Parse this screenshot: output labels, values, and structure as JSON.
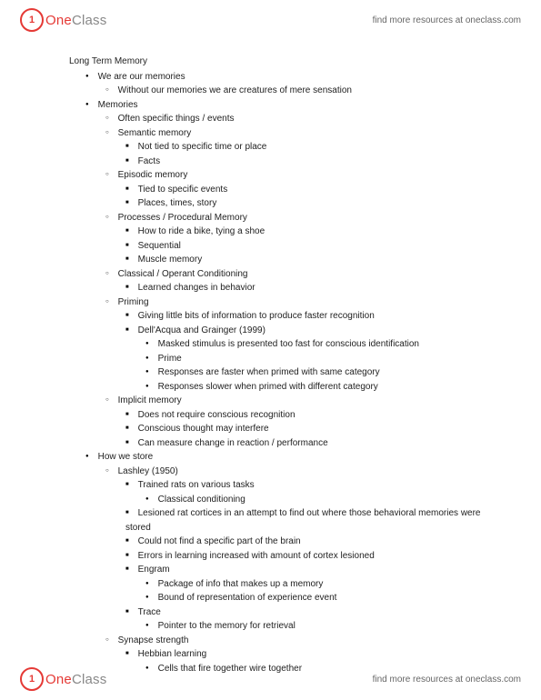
{
  "brand": {
    "one": "One",
    "class": "Class",
    "circle": "1"
  },
  "header_link": "find more resources at oneclass.com",
  "footer_link": "find more resources at oneclass.com",
  "title": "Long Term Memory",
  "b1": "We are our memories",
  "b1_1": "Without our memories we are creatures of mere sensation",
  "b2": "Memories",
  "b2_1": "Often specific things / events",
  "b2_2": "Semantic memory",
  "b2_2_1": "Not tied to specific time or place",
  "b2_2_2": "Facts",
  "b2_3": "Episodic memory",
  "b2_3_1": "Tied to specific events",
  "b2_3_2": "Places, times, story",
  "b2_4": "Processes / Procedural Memory",
  "b2_4_1": "How to ride a bike, tying a shoe",
  "b2_4_2": "Sequential",
  "b2_4_3": "Muscle memory",
  "b2_5": "Classical / Operant Conditioning",
  "b2_5_1": "Learned changes in behavior",
  "b2_6": "Priming",
  "b2_6_1": "Giving little bits of information to produce faster recognition",
  "b2_6_2": "Dell'Acqua and Grainger (1999)",
  "b2_6_2_1": "Masked stimulus is presented too fast for conscious identification",
  "b2_6_2_2": "Prime",
  "b2_6_2_3": "Responses are faster when primed with same category",
  "b2_6_2_4": "Responses slower when primed with different category",
  "b2_7": "Implicit memory",
  "b2_7_1": "Does not require conscious recognition",
  "b2_7_2": "Conscious thought may interfere",
  "b2_7_3": "Can measure change in reaction / performance",
  "b3": "How we store",
  "b3_1": "Lashley (1950)",
  "b3_1_1": "Trained rats on various tasks",
  "b3_1_1_1": "Classical conditioning",
  "b3_1_2": "Lesioned rat cortices in an attempt to find out where those behavioral memories were stored",
  "b3_1_3": "Could not find a specific part of the brain",
  "b3_1_4": "Errors in learning increased with amount of cortex lesioned",
  "b3_1_5": "Engram",
  "b3_1_5_1": "Package of info that makes up a memory",
  "b3_1_5_2": "Bound of representation of experience event",
  "b3_1_6": "Trace",
  "b3_1_6_1": "Pointer to the memory for retrieval",
  "b3_2": "Synapse strength",
  "b3_2_1": "Hebbian learning",
  "b3_2_1_1": "Cells that fire together wire together"
}
